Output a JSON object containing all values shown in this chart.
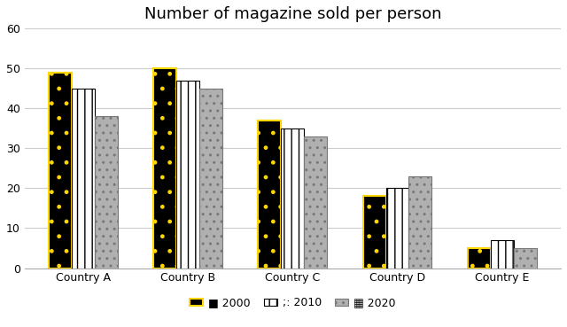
{
  "title": "Number of magazine sold per person",
  "categories": [
    "Country A",
    "Country B",
    "Country C",
    "Country D",
    "Country E"
  ],
  "series": {
    "2000": [
      49,
      50,
      37,
      18,
      5
    ],
    "2010": [
      45,
      47,
      35,
      20,
      7
    ],
    "2020": [
      38,
      45,
      33,
      23,
      5
    ]
  },
  "ylim": [
    0,
    60
  ],
  "yticks": [
    0,
    10,
    20,
    30,
    40,
    50,
    60
  ],
  "bar_width": 0.22,
  "background_color": "#ffffff",
  "title_fontsize": 13,
  "tick_fontsize": 9,
  "legend_fontsize": 9,
  "grid_color": "#cccccc"
}
